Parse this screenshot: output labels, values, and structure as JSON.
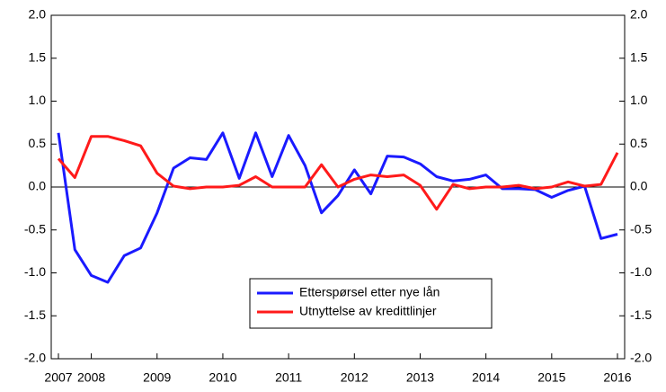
{
  "chart_data": {
    "type": "line",
    "categories": [
      "2007",
      null,
      "2008",
      null,
      null,
      null,
      "2009",
      null,
      null,
      null,
      "2010",
      null,
      null,
      null,
      "2011",
      null,
      null,
      null,
      "2012",
      null,
      null,
      null,
      "2013",
      null,
      null,
      null,
      "2014",
      null,
      null,
      null,
      "2015",
      null,
      null,
      null,
      "2016"
    ],
    "series": [
      {
        "name": "Etterspørsel etter nye lån",
        "color": "#1a1aff",
        "values": [
          0.63,
          -0.73,
          -1.03,
          -1.11,
          -0.8,
          -0.71,
          -0.3,
          0.22,
          0.34,
          0.32,
          0.63,
          0.1,
          0.63,
          0.12,
          0.6,
          0.25,
          -0.3,
          -0.1,
          0.2,
          -0.08,
          0.36,
          0.35,
          0.27,
          0.12,
          0.07,
          0.09,
          0.14,
          -0.02,
          -0.02,
          -0.03,
          -0.12,
          -0.04,
          0.01,
          -0.6,
          -0.55
        ]
      },
      {
        "name": "Utnyttelse av kredittlinjer",
        "color": "#ff1a1a",
        "values": [
          0.33,
          0.11,
          0.59,
          0.59,
          0.54,
          0.48,
          0.16,
          0.01,
          -0.02,
          0.0,
          0.0,
          0.02,
          0.12,
          0.0,
          0.0,
          0.0,
          0.26,
          0.0,
          0.09,
          0.14,
          0.12,
          0.14,
          0.02,
          -0.26,
          0.03,
          -0.02,
          0.0,
          0.0,
          0.02,
          -0.02,
          0.0,
          0.06,
          0.01,
          0.03,
          0.4
        ]
      }
    ],
    "ylim": [
      -2,
      2
    ],
    "yticks": [
      {
        "value": -2,
        "label": "-2.0"
      },
      {
        "value": -1.5,
        "label": "-1.5"
      },
      {
        "value": -1,
        "label": "-1.0"
      },
      {
        "value": -0.5,
        "label": "-0.5"
      },
      {
        "value": 0,
        "label": "0.0"
      },
      {
        "value": 0.5,
        "label": "0.5"
      },
      {
        "value": 1,
        "label": "1.0"
      },
      {
        "value": 1.5,
        "label": "1.5"
      },
      {
        "value": 2,
        "label": "2.0"
      }
    ],
    "y2lim": [
      -2,
      2
    ],
    "y2ticks": [
      {
        "value": -2,
        "label": "-2.0"
      },
      {
        "value": -1.5,
        "label": "-1.5"
      },
      {
        "value": -1,
        "label": "-1.0"
      },
      {
        "value": -0.5,
        "label": "-0.5"
      },
      {
        "value": 0,
        "label": "0.0"
      },
      {
        "value": 0.5,
        "label": "0.5"
      },
      {
        "value": 1,
        "label": "1.0"
      },
      {
        "value": 1.5,
        "label": "1.5"
      },
      {
        "value": 2,
        "label": "2.0"
      }
    ],
    "grid": false,
    "zero_line": true,
    "legend": "bottom-center"
  }
}
